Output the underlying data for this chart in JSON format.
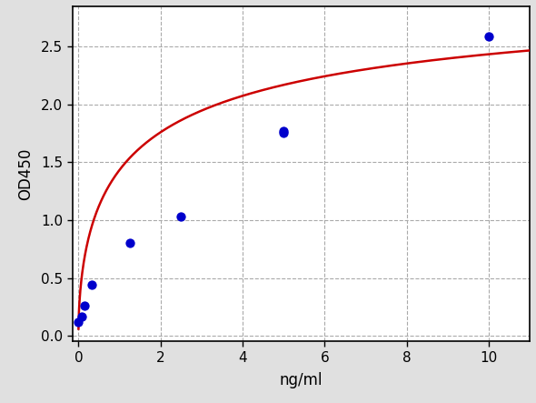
{
  "points_x": [
    0.0,
    0.078,
    0.156,
    0.313,
    1.25,
    2.5,
    5.0,
    5.0,
    10.0
  ],
  "points_y": [
    0.118,
    0.163,
    0.262,
    0.443,
    0.803,
    1.03,
    1.755,
    1.775,
    2.59
  ],
  "point_color": "#0000cc",
  "point_size": 55,
  "curve_color": "#cc0000",
  "curve_linewidth": 1.8,
  "xlabel": "ng/ml",
  "ylabel": "OD450",
  "xlim": [
    -0.15,
    11.0
  ],
  "ylim": [
    -0.05,
    2.85
  ],
  "xticks": [
    0,
    2,
    4,
    6,
    8,
    10
  ],
  "yticks": [
    0.0,
    0.5,
    1.0,
    1.5,
    2.0,
    2.5
  ],
  "background_color": "#e0e0e0",
  "plot_background": "#ffffff",
  "grid_color": "#aaaaaa",
  "grid_linestyle": "--",
  "tick_labelsize": 11,
  "xlabel_fontsize": 12,
  "ylabel_fontsize": 12
}
